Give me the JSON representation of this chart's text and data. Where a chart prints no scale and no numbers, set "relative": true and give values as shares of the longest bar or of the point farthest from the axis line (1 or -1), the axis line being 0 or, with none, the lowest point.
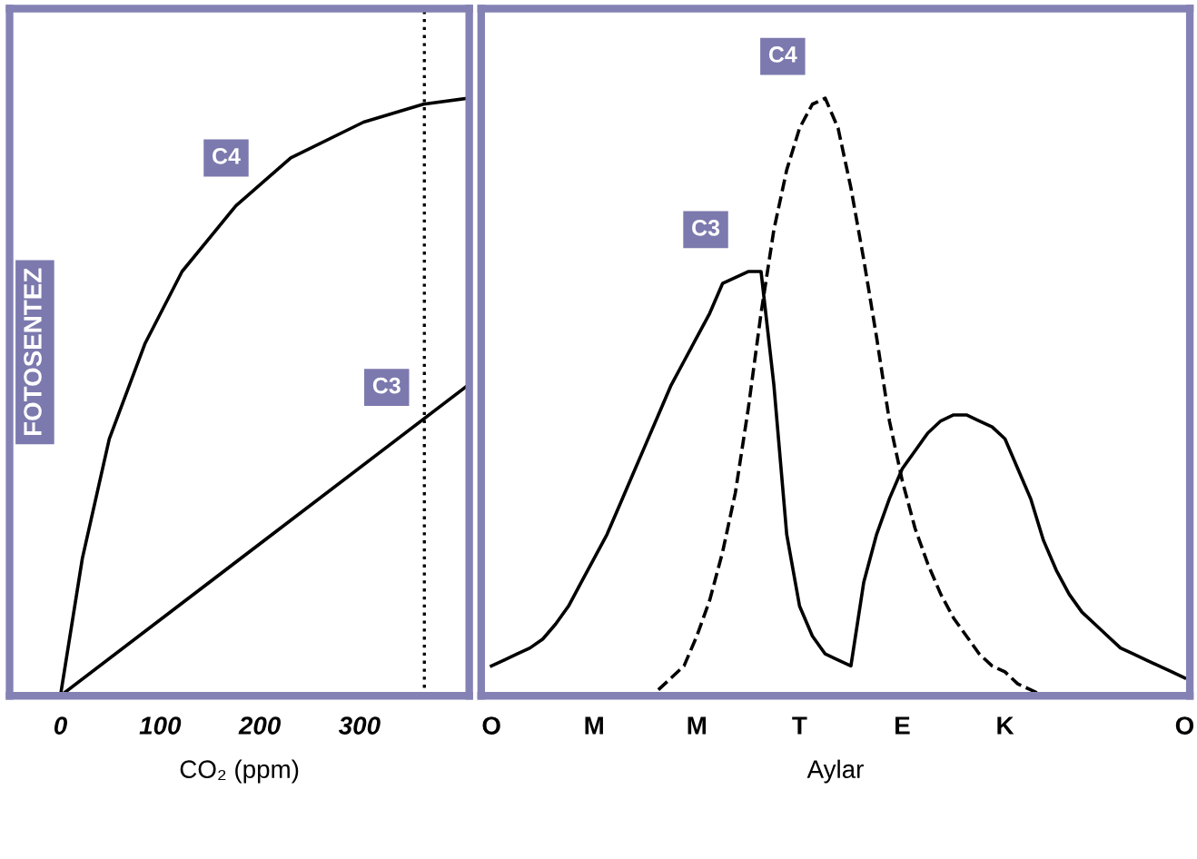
{
  "chart_data": [
    {
      "type": "line",
      "relative": true,
      "ylabel": "FOTOSENTEZ",
      "xlabel": "CO₂ (ppm)",
      "xlim": [
        -51,
        410
      ],
      "xticks": [
        0,
        100,
        200,
        300
      ],
      "grid": false,
      "legend": false,
      "line_style": "solid",
      "marker": "none",
      "ref_lines": [
        {
          "axis": "x",
          "value": 365,
          "color": "#000000",
          "line_style": "dotted"
        }
      ],
      "series": [
        {
          "name": "C4",
          "color": "#000000",
          "x": [
            0,
            22,
            49,
            85,
            122,
            176,
            231,
            304,
            364,
            409
          ],
          "values": [
            0,
            0.23,
            0.43,
            0.59,
            0.71,
            0.82,
            0.9,
            0.96,
            0.99,
            1.0
          ]
        },
        {
          "name": "C3",
          "color": "#000000",
          "x": [
            0,
            409
          ],
          "values": [
            0,
            0.52
          ]
        }
      ]
    },
    {
      "type": "line",
      "relative": true,
      "xlabel": "Aylar",
      "categories": [
        "O",
        null,
        null,
        null,
        null,
        null,
        null,
        null,
        "M",
        null,
        null,
        null,
        null,
        null,
        null,
        null,
        "M",
        null,
        null,
        null,
        null,
        null,
        null,
        null,
        "T",
        null,
        null,
        null,
        null,
        null,
        null,
        null,
        "E",
        null,
        null,
        null,
        null,
        null,
        null,
        null,
        "K",
        null,
        null,
        null,
        null,
        null,
        null,
        null,
        null,
        null,
        null,
        null,
        null,
        null,
        "O"
      ],
      "grid": false,
      "legend": false,
      "marker": "none",
      "series": [
        {
          "name": "C3",
          "color": "#000000",
          "line_style": "solid",
          "values": [
            0.05,
            0.06,
            0.07,
            0.08,
            0.095,
            0.12,
            0.15,
            0.19,
            0.23,
            0.27,
            0.32,
            0.37,
            0.42,
            0.47,
            0.52,
            0.56,
            0.6,
            0.64,
            0.69,
            0.7,
            0.71,
            0.71,
            0.52,
            0.27,
            0.15,
            0.1,
            0.07,
            0.06,
            0.05,
            0.19,
            0.27,
            0.33,
            0.38,
            0.41,
            0.44,
            0.46,
            0.47,
            0.47,
            0.46,
            0.45,
            0.43,
            0.38,
            0.33,
            0.26,
            0.21,
            0.17,
            0.14,
            0.12,
            0.1,
            0.08,
            0.07,
            0.06,
            0.05,
            0.04,
            0.03
          ]
        },
        {
          "name": "C4",
          "color": "#000000",
          "line_style": "dashed",
          "values": [
            null,
            null,
            null,
            null,
            null,
            null,
            null,
            null,
            null,
            null,
            null,
            null,
            null,
            0.01,
            0.03,
            0.05,
            0.1,
            0.16,
            0.24,
            0.34,
            0.48,
            0.64,
            0.78,
            0.88,
            0.95,
            0.99,
            1.0,
            0.95,
            0.85,
            0.73,
            0.6,
            0.46,
            0.36,
            0.28,
            0.22,
            0.17,
            0.13,
            0.1,
            0.07,
            0.05,
            0.04,
            0.02,
            0.01,
            0,
            null,
            null,
            null,
            null,
            null,
            null,
            null,
            null,
            null,
            null,
            null
          ]
        }
      ]
    }
  ]
}
